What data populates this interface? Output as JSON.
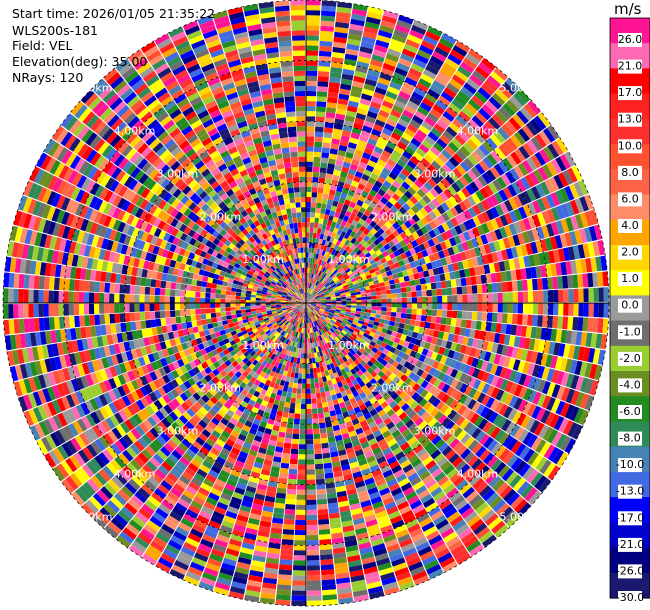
{
  "header": {
    "start_time": "Start time: 2026/01/05 21:35:22",
    "instrument": "WLS200s-181",
    "field": "Field: VEL",
    "elevation": "Elevation(deg): 35.00",
    "nrays": "NRays: 120"
  },
  "chart_data": {
    "type": "heatmap",
    "projection": "polar-ppi",
    "field": "VEL",
    "n_rays": 120,
    "max_range_km": 5.0,
    "range_rings_km": [
      1,
      2,
      3,
      4,
      5
    ],
    "ring_label_text": [
      "1.00km",
      "2.00km",
      "3.00km",
      "4.00km",
      "5.00km"
    ],
    "colorbar": {
      "unit": "m/s",
      "tick_labels": [
        "26.0",
        "21.0",
        "17.0",
        "13.0",
        "10.0",
        "8.0",
        "6.0",
        "4.0",
        "2.0",
        "1.0",
        "0.0",
        "-1.0",
        "-2.0",
        "-4.0",
        "-6.0",
        "-8.0",
        "-10.0",
        "-13.0",
        "-17.0",
        "-21.0",
        "-26.0",
        "-30.0"
      ],
      "colors": [
        "#ff1493",
        "#ff69b4",
        "#ff0000",
        "#ff2020",
        "#ff3030",
        "#ff5030",
        "#ff6347",
        "#ff8c69",
        "#ffa500",
        "#ffd700",
        "#ffff00",
        "#9a9a9a",
        "#6e6e6e",
        "#9acd32",
        "#6b8e23",
        "#228b22",
        "#2e8b57",
        "#4682b4",
        "#4169e1",
        "#0000ff",
        "#0000cd",
        "#000080",
        "#191970"
      ],
      "vmin": -30,
      "vmax": 30
    },
    "grid": true
  }
}
